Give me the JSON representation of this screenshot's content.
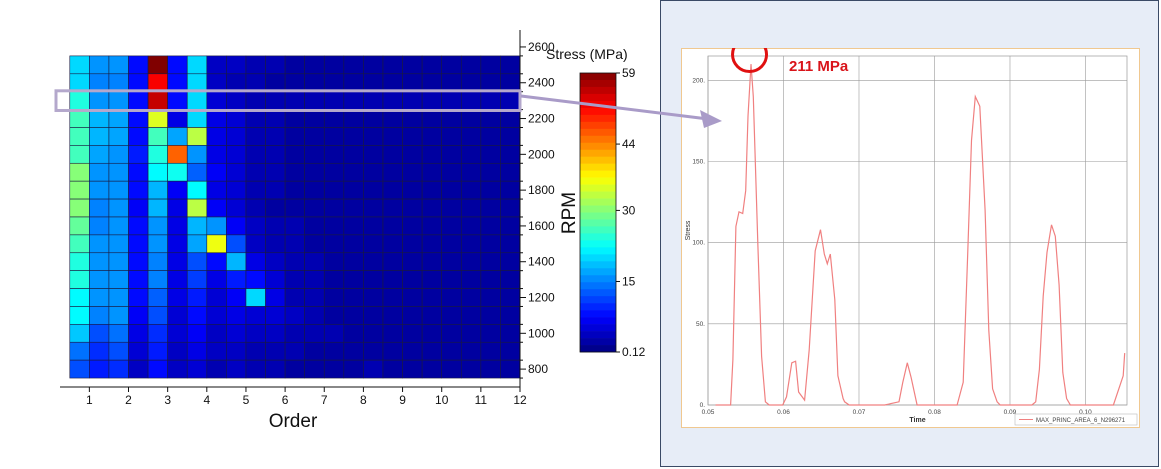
{
  "chart_data": [
    {
      "type": "heatmap",
      "xlabel": "Order",
      "ylabel": "RPM",
      "x_ticks": [
        "1",
        "2",
        "3",
        "4",
        "5",
        "6",
        "7",
        "8",
        "9",
        "10",
        "11",
        "12"
      ],
      "y_ticks": [
        "800",
        "1000",
        "1200",
        "1400",
        "1600",
        "1800",
        "2000",
        "2200",
        "2400",
        "2600"
      ],
      "y_range": [
        700,
        2650
      ],
      "x_range": [
        0.25,
        12
      ],
      "x_step": 0.5,
      "colorbar": {
        "title": "Stress (MPa)",
        "ticks": [
          "59",
          "44",
          "30",
          "15",
          "0.12"
        ],
        "tick_values": [
          59,
          44,
          30,
          15,
          0.12
        ],
        "range": [
          0.12,
          59
        ]
      },
      "rows_rpm": [
        2500,
        2400,
        2300,
        2200,
        2100,
        2000,
        1900,
        1800,
        1700,
        1600,
        1500,
        1400,
        1300,
        1200,
        1100,
        1000,
        900,
        800
      ],
      "grid_min_order": 0.5,
      "values": [
        [
          20,
          16,
          16,
          8,
          59,
          8,
          20,
          4,
          4,
          3,
          3,
          2,
          2,
          2,
          2,
          2,
          2,
          2,
          2,
          2,
          2,
          2,
          2
        ],
        [
          20,
          15,
          15,
          8,
          52,
          8,
          20,
          4,
          3,
          3,
          2,
          2,
          2,
          2,
          2,
          2,
          2,
          2,
          2,
          2,
          2,
          2,
          2
        ],
        [
          24,
          16,
          16,
          8,
          55,
          8,
          20,
          5,
          4,
          3,
          3,
          3,
          3,
          3,
          3,
          3,
          3,
          3,
          3,
          3,
          3,
          3,
          3
        ],
        [
          26,
          18,
          17,
          8,
          35,
          6,
          20,
          6,
          5,
          3,
          3,
          2,
          2,
          2,
          2,
          2,
          2,
          2,
          2,
          2,
          2,
          2,
          2
        ],
        [
          26,
          18,
          17,
          8,
          26,
          17,
          33,
          6,
          5,
          3,
          3,
          2,
          2,
          2,
          2,
          2,
          2,
          2,
          2,
          2,
          2,
          2,
          2
        ],
        [
          26,
          17,
          16,
          9,
          24,
          46,
          16,
          6,
          5,
          3,
          3,
          2,
          2,
          2,
          2,
          2,
          2,
          2,
          2,
          2,
          2,
          2,
          2
        ],
        [
          30,
          16,
          16,
          8,
          22,
          23,
          13,
          7,
          5,
          3,
          3,
          2,
          2,
          2,
          2,
          2,
          2,
          2,
          2,
          2,
          2,
          2,
          2
        ],
        [
          30,
          16,
          16,
          8,
          18,
          7,
          22,
          6,
          5,
          3,
          3,
          2,
          2,
          2,
          2,
          2,
          2,
          2,
          2,
          2,
          2,
          2,
          2
        ],
        [
          30,
          15,
          16,
          7,
          18,
          6,
          33,
          7,
          5,
          3,
          2,
          2,
          2,
          2,
          2,
          2,
          2,
          2,
          2,
          2,
          2,
          2,
          2
        ],
        [
          28,
          15,
          16,
          8,
          16,
          6,
          18,
          16,
          7,
          4,
          3,
          3,
          2,
          2,
          2,
          2,
          2,
          2,
          2,
          2,
          2,
          2,
          2
        ],
        [
          26,
          16,
          16,
          8,
          16,
          6,
          17,
          36,
          12,
          4,
          3,
          3,
          2,
          2,
          2,
          2,
          2,
          2,
          2,
          2,
          2,
          2,
          2
        ],
        [
          24,
          16,
          16,
          8,
          15,
          6,
          12,
          8,
          18,
          6,
          4,
          3,
          3,
          2,
          2,
          2,
          2,
          2,
          2,
          2,
          2,
          2,
          2
        ],
        [
          24,
          16,
          16,
          8,
          15,
          6,
          11,
          6,
          9,
          8,
          5,
          3,
          3,
          2,
          2,
          2,
          2,
          2,
          2,
          2,
          2,
          2,
          2
        ],
        [
          22,
          16,
          16,
          8,
          13,
          6,
          9,
          5,
          7,
          20,
          6,
          3,
          3,
          2,
          2,
          2,
          2,
          2,
          2,
          2,
          2,
          2,
          2
        ],
        [
          22,
          15,
          16,
          7,
          12,
          5,
          8,
          5,
          6,
          5,
          5,
          4,
          3,
          2,
          2,
          2,
          2,
          2,
          2,
          2,
          2,
          2,
          2
        ],
        [
          19,
          12,
          14,
          6,
          10,
          5,
          7,
          4,
          5,
          4,
          4,
          3,
          3,
          3,
          2,
          2,
          2,
          2,
          2,
          2,
          2,
          2,
          2
        ],
        [
          14,
          10,
          12,
          5,
          9,
          4,
          6,
          4,
          4,
          3,
          3,
          3,
          2,
          2,
          2,
          2,
          2,
          2,
          2,
          2,
          2,
          2,
          2
        ],
        [
          12,
          9,
          10,
          4,
          8,
          4,
          5,
          3,
          4,
          3,
          3,
          2,
          2,
          2,
          2,
          3,
          2,
          2,
          2,
          2,
          2,
          2,
          2
        ]
      ],
      "highlighted_row_rpm": 2300
    },
    {
      "type": "line",
      "xlabel": "Time",
      "ylabel": "Stress",
      "x_ticks": [
        "0.05",
        "0.06",
        "0.07",
        "0.08",
        "0.09",
        "0.10"
      ],
      "x_tick_values": [
        0.05,
        0.06,
        0.07,
        0.08,
        0.09,
        0.1
      ],
      "y_ticks": [
        "0.",
        "50.",
        "100.",
        "150.",
        "200."
      ],
      "y_tick_values": [
        0,
        50,
        100,
        150,
        200
      ],
      "xlim": [
        0.05,
        0.1055
      ],
      "ylim": [
        0,
        215
      ],
      "grid": true,
      "legend": {
        "placement": "bottom-right",
        "label": "MAX_PRINC_AREA_6_N296271"
      },
      "series": [
        {
          "name": "MAX_PRINC_AREA_6_N296271",
          "color": "#f08080",
          "x": [
            0.051,
            0.053,
            0.0533,
            0.0537,
            0.0541,
            0.0546,
            0.055,
            0.0553,
            0.0557,
            0.056,
            0.0566,
            0.0571,
            0.0576,
            0.0581,
            0.0599,
            0.0604,
            0.0611,
            0.0616,
            0.062,
            0.0628,
            0.0634,
            0.0642,
            0.0649,
            0.0654,
            0.0658,
            0.0662,
            0.0668,
            0.0672,
            0.0679,
            0.0681,
            0.0687,
            0.0734,
            0.0753,
            0.0758,
            0.0764,
            0.0769,
            0.0777,
            0.0815,
            0.083,
            0.0838,
            0.0844,
            0.0849,
            0.0854,
            0.086,
            0.0867,
            0.0872,
            0.0877,
            0.0883,
            0.0887,
            0.0902,
            0.0929,
            0.0934,
            0.0939,
            0.0944,
            0.0949,
            0.0955,
            0.096,
            0.0965,
            0.097,
            0.0975,
            0.098,
            0.1011,
            0.1037,
            0.105,
            0.1052
          ],
          "y": [
            0,
            0,
            28,
            110,
            119,
            118,
            132,
            178,
            210,
            190,
            100,
            30,
            2,
            0,
            0,
            5,
            26,
            27,
            8,
            3,
            34,
            95,
            108,
            93,
            87,
            93,
            65,
            18,
            4,
            2,
            0,
            0,
            2,
            14,
            26,
            17,
            0,
            0,
            0,
            14,
            93,
            163,
            190,
            184,
            120,
            46,
            10,
            2,
            0,
            0,
            0,
            2,
            22,
            67,
            94,
            111,
            104,
            74,
            20,
            4,
            0,
            0,
            0,
            18,
            32
          ]
        }
      ],
      "peak": {
        "x": 0.0557,
        "y": 211
      }
    }
  ],
  "annotation": {
    "label": "211 MPa",
    "color": "#d9141a"
  }
}
